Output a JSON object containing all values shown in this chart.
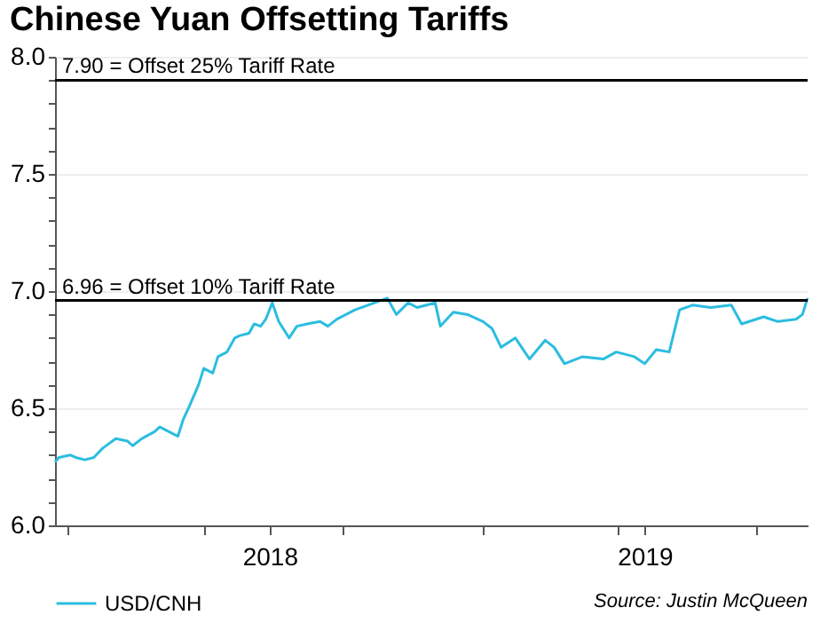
{
  "chart_data": {
    "type": "line",
    "title": "Chinese Yuan Offsetting Tariffs",
    "x": [
      "2018-01-01",
      "2018-01-04",
      "2018-01-13",
      "2018-01-17",
      "2018-01-24",
      "2018-01-31",
      "2018-02-07",
      "2018-02-17",
      "2018-02-26",
      "2018-03-02",
      "2018-03-09",
      "2018-03-19",
      "2018-03-23",
      "2018-03-30",
      "2018-04-06",
      "2018-04-10",
      "2018-04-15",
      "2018-04-22",
      "2018-04-26",
      "2018-05-03",
      "2018-05-07",
      "2018-05-14",
      "2018-05-20",
      "2018-05-24",
      "2018-05-31",
      "2018-06-04",
      "2018-06-09",
      "2018-06-13",
      "2018-06-18",
      "2018-06-23",
      "2018-07-01",
      "2018-07-07",
      "2018-07-15",
      "2018-07-25",
      "2018-07-31",
      "2018-08-07",
      "2018-08-21",
      "2018-08-31",
      "2018-09-15",
      "2018-09-22",
      "2018-10-01",
      "2018-10-08",
      "2018-10-22",
      "2018-10-26",
      "2018-11-05",
      "2018-11-16",
      "2018-11-28",
      "2018-12-05",
      "2018-12-12",
      "2018-12-23",
      "2019-01-03",
      "2019-01-15",
      "2019-01-22",
      "2019-01-30",
      "2019-02-13",
      "2019-03-01",
      "2019-03-11",
      "2019-03-25",
      "2019-04-02",
      "2019-04-11",
      "2019-04-21",
      "2019-04-29",
      "2019-05-09",
      "2019-05-23",
      "2019-06-08",
      "2019-06-16",
      "2019-07-03",
      "2019-07-14",
      "2019-07-28",
      "2019-08-02",
      "2019-08-06"
    ],
    "series": [
      {
        "name": "USD/CNH",
        "color": "#2bbde0",
        "values": [
          6.27,
          6.29,
          6.3,
          6.29,
          6.28,
          6.29,
          6.33,
          6.37,
          6.36,
          6.34,
          6.37,
          6.4,
          6.42,
          6.4,
          6.38,
          6.45,
          6.51,
          6.6,
          6.67,
          6.65,
          6.72,
          6.74,
          6.8,
          6.81,
          6.82,
          6.86,
          6.85,
          6.88,
          6.95,
          6.87,
          6.8,
          6.85,
          6.86,
          6.87,
          6.85,
          6.88,
          6.92,
          6.94,
          6.97,
          6.9,
          6.95,
          6.93,
          6.95,
          6.85,
          6.91,
          6.9,
          6.87,
          6.84,
          6.76,
          6.8,
          6.71,
          6.79,
          6.76,
          6.69,
          6.72,
          6.71,
          6.74,
          6.72,
          6.69,
          6.75,
          6.74,
          6.92,
          6.94,
          6.93,
          6.94,
          6.86,
          6.89,
          6.87,
          6.88,
          6.9,
          6.97
        ]
      }
    ],
    "xlim": [
      "2018-01-01",
      "2019-08-06"
    ],
    "xticks": [
      {
        "value": "2018-01-10",
        "label": null
      },
      {
        "value": "2018-04-26",
        "label": null
      },
      {
        "value": "2018-06-16",
        "label": "2018"
      },
      {
        "value": "2018-08-11",
        "label": null
      },
      {
        "value": "2018-11-28",
        "label": null
      },
      {
        "value": "2019-03-12",
        "label": null
      },
      {
        "value": "2019-04-02",
        "label": "2019"
      },
      {
        "value": "2019-06-27",
        "label": null
      }
    ],
    "ylim": [
      6.0,
      8.0
    ],
    "yticks": [
      {
        "value": 6.0,
        "label": "6.0"
      },
      {
        "value": 6.1,
        "label": null
      },
      {
        "value": 6.2,
        "label": null
      },
      {
        "value": 6.3,
        "label": null
      },
      {
        "value": 6.4,
        "label": null
      },
      {
        "value": 6.5,
        "label": "6.5"
      },
      {
        "value": 6.6,
        "label": null
      },
      {
        "value": 6.7,
        "label": null
      },
      {
        "value": 6.8,
        "label": null
      },
      {
        "value": 6.9,
        "label": null
      },
      {
        "value": 7.0,
        "label": "7.0"
      },
      {
        "value": 7.1,
        "label": null
      },
      {
        "value": 7.2,
        "label": null
      },
      {
        "value": 7.3,
        "label": null
      },
      {
        "value": 7.4,
        "label": null
      },
      {
        "value": 7.5,
        "label": "7.5"
      },
      {
        "value": 7.6,
        "label": null
      },
      {
        "value": 7.7,
        "label": null
      },
      {
        "value": 7.8,
        "label": null
      },
      {
        "value": 7.9,
        "label": null
      },
      {
        "value": 8.0,
        "label": "8.0"
      }
    ],
    "ref_lines": [
      {
        "axis": "y",
        "value": 7.9,
        "label": "7.90 = Offset 25% Tariff Rate",
        "color": "#000000"
      },
      {
        "axis": "y",
        "value": 6.96,
        "label": "6.96 = Offset 10% Tariff Rate",
        "color": "#000000"
      }
    ],
    "grid": "y",
    "legend": "bottom left",
    "line_style": "solid",
    "annotations": [
      "Source: Justin McQueen"
    ]
  }
}
